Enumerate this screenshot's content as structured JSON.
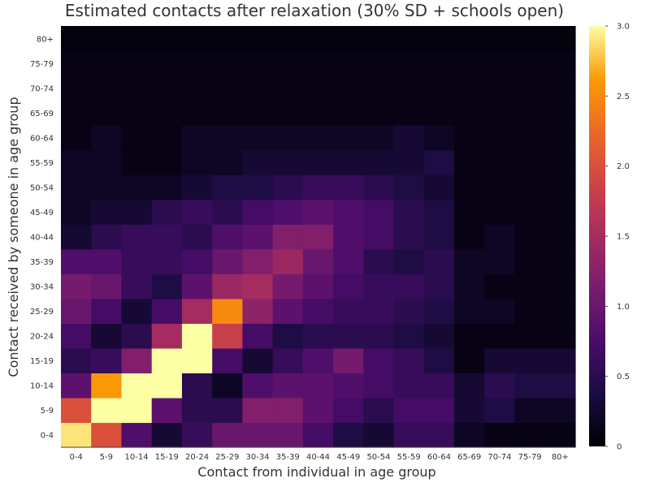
{
  "chart_data": {
    "type": "heatmap",
    "title": "Estimated contacts after relaxation (30% SD + schools open)",
    "xlabel": "Contact from individual in age group",
    "ylabel": "Contact received by someone in age group",
    "x_categories": [
      "0-4",
      "5-9",
      "10-14",
      "15-19",
      "20-24",
      "25-29",
      "30-34",
      "35-39",
      "40-44",
      "45-49",
      "50-54",
      "55-59",
      "60-64",
      "65-69",
      "70-74",
      "75-79",
      "80+"
    ],
    "y_categories": [
      "0-4",
      "5-9",
      "10-14",
      "15-19",
      "20-24",
      "25-29",
      "30-34",
      "35-39",
      "40-44",
      "45-49",
      "50-54",
      "55-59",
      "60-64",
      "65-69",
      "70-74",
      "75-79",
      "80+"
    ],
    "values": [
      [
        2.9,
        2.0,
        0.8,
        0.3,
        0.6,
        1.0,
        1.0,
        1.0,
        0.7,
        0.4,
        0.3,
        0.6,
        0.6,
        0.2,
        0.1,
        0.1,
        0.1
      ],
      [
        2.0,
        3.0,
        3.0,
        0.9,
        0.5,
        0.5,
        1.2,
        1.2,
        0.9,
        0.7,
        0.5,
        0.7,
        0.7,
        0.3,
        0.4,
        0.2,
        0.2
      ],
      [
        0.9,
        2.6,
        3.0,
        3.0,
        0.5,
        0.2,
        0.8,
        0.9,
        0.9,
        0.8,
        0.7,
        0.6,
        0.6,
        0.3,
        0.5,
        0.4,
        0.4
      ],
      [
        0.5,
        0.6,
        1.2,
        3.0,
        3.0,
        0.7,
        0.3,
        0.6,
        0.8,
        1.1,
        0.7,
        0.6,
        0.4,
        0.1,
        0.3,
        0.3,
        0.3
      ],
      [
        0.7,
        0.3,
        0.5,
        1.5,
        3.0,
        1.8,
        0.7,
        0.4,
        0.5,
        0.5,
        0.5,
        0.4,
        0.3,
        0.1,
        0.1,
        0.1,
        0.1
      ],
      [
        1.0,
        0.7,
        0.3,
        0.7,
        1.5,
        2.5,
        1.3,
        0.9,
        0.7,
        0.6,
        0.6,
        0.5,
        0.4,
        0.2,
        0.2,
        0.1,
        0.1
      ],
      [
        1.1,
        1.0,
        0.6,
        0.4,
        0.9,
        1.4,
        1.5,
        1.1,
        0.9,
        0.7,
        0.6,
        0.6,
        0.5,
        0.2,
        0.1,
        0.1,
        0.1
      ],
      [
        0.8,
        0.8,
        0.6,
        0.6,
        0.7,
        1.0,
        1.2,
        1.4,
        1.0,
        0.8,
        0.5,
        0.4,
        0.5,
        0.2,
        0.2,
        0.1,
        0.1
      ],
      [
        0.3,
        0.5,
        0.6,
        0.6,
        0.5,
        0.8,
        0.9,
        1.2,
        1.2,
        0.8,
        0.7,
        0.5,
        0.4,
        0.1,
        0.2,
        0.1,
        0.1
      ],
      [
        0.2,
        0.3,
        0.3,
        0.5,
        0.6,
        0.5,
        0.7,
        0.8,
        0.9,
        0.8,
        0.7,
        0.5,
        0.4,
        0.1,
        0.1,
        0.1,
        0.1
      ],
      [
        0.2,
        0.2,
        0.2,
        0.2,
        0.3,
        0.4,
        0.4,
        0.5,
        0.6,
        0.6,
        0.5,
        0.4,
        0.3,
        0.1,
        0.1,
        0.1,
        0.1
      ],
      [
        0.2,
        0.2,
        0.1,
        0.1,
        0.2,
        0.2,
        0.3,
        0.3,
        0.3,
        0.3,
        0.3,
        0.3,
        0.4,
        0.1,
        0.1,
        0.1,
        0.1
      ],
      [
        0.1,
        0.2,
        0.1,
        0.1,
        0.2,
        0.2,
        0.2,
        0.2,
        0.2,
        0.2,
        0.2,
        0.3,
        0.2,
        0.1,
        0.1,
        0.1,
        0.1
      ],
      [
        0.1,
        0.1,
        0.1,
        0.1,
        0.1,
        0.1,
        0.1,
        0.1,
        0.1,
        0.1,
        0.1,
        0.1,
        0.1,
        0.1,
        0.1,
        0.1,
        0.1
      ],
      [
        0.1,
        0.1,
        0.1,
        0.1,
        0.1,
        0.1,
        0.1,
        0.1,
        0.1,
        0.1,
        0.1,
        0.1,
        0.1,
        0.1,
        0.1,
        0.1,
        0.1
      ],
      [
        0.1,
        0.1,
        0.1,
        0.1,
        0.1,
        0.1,
        0.1,
        0.1,
        0.1,
        0.1,
        0.1,
        0.1,
        0.1,
        0.1,
        0.1,
        0.1,
        0.1
      ],
      [
        0.05,
        0.05,
        0.05,
        0.05,
        0.05,
        0.05,
        0.05,
        0.05,
        0.05,
        0.05,
        0.05,
        0.05,
        0.05,
        0.05,
        0.05,
        0.05,
        0.05
      ]
    ],
    "colorscale": "inferno",
    "clim": [
      0,
      3.0
    ],
    "colorbar_ticks": [
      "0",
      "0.5",
      "1.0",
      "1.5",
      "2.0",
      "2.5",
      "3.0"
    ],
    "grid": false,
    "legend_position": "right"
  }
}
